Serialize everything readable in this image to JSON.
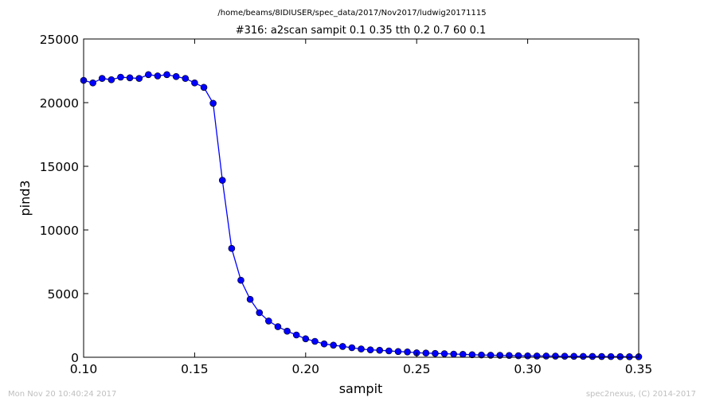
{
  "chart_data": {
    "type": "line",
    "supertitle": "/home/beams/8IDIUSER/spec_data/2017/Nov2017/ludwig20171115",
    "title": "#316: a2scan  sampit 0.1 0.35  tth 0.2 0.7  60 0.1",
    "xlabel": "sampit",
    "ylabel": "pind3",
    "xlim": [
      0.1,
      0.35
    ],
    "ylim": [
      0,
      25000
    ],
    "xticks": [
      "0.10",
      "0.15",
      "0.20",
      "0.25",
      "0.30",
      "0.35"
    ],
    "yticks": [
      "0",
      "5000",
      "10000",
      "15000",
      "20000",
      "25000"
    ],
    "grid": false,
    "series": [
      {
        "color": "#0000ff",
        "marker": "circle",
        "x": [
          0.1,
          0.10417,
          0.10833,
          0.1125,
          0.11667,
          0.12083,
          0.125,
          0.12917,
          0.13333,
          0.1375,
          0.14167,
          0.14583,
          0.15,
          0.15417,
          0.15833,
          0.1625,
          0.16667,
          0.17083,
          0.175,
          0.17917,
          0.18333,
          0.1875,
          0.19167,
          0.19583,
          0.2,
          0.20417,
          0.20833,
          0.2125,
          0.21667,
          0.22083,
          0.225,
          0.22917,
          0.23333,
          0.2375,
          0.24167,
          0.24583,
          0.25,
          0.25417,
          0.25833,
          0.2625,
          0.26667,
          0.27083,
          0.275,
          0.27917,
          0.28333,
          0.2875,
          0.29167,
          0.29583,
          0.3,
          0.30417,
          0.30833,
          0.3125,
          0.31667,
          0.32083,
          0.325,
          0.32917,
          0.33333,
          0.3375,
          0.34167,
          0.34583,
          0.35
        ],
        "y": [
          21750,
          21550,
          21900,
          21800,
          22000,
          21950,
          21900,
          22200,
          22100,
          22200,
          22050,
          21900,
          21550,
          21200,
          19950,
          13900,
          8550,
          6050,
          4550,
          3500,
          2850,
          2400,
          2050,
          1750,
          1450,
          1250,
          1050,
          950,
          850,
          750,
          650,
          580,
          550,
          500,
          450,
          420,
          350,
          330,
          300,
          280,
          250,
          230,
          200,
          180,
          160,
          150,
          140,
          120,
          110,
          100,
          95,
          90,
          80,
          75,
          70,
          65,
          60,
          55,
          50,
          45,
          40
        ]
      }
    ]
  },
  "footer": {
    "timestamp": "Mon Nov 20 10:40:24 2017",
    "credit": "spec2nexus, (C) 2014-2017"
  }
}
